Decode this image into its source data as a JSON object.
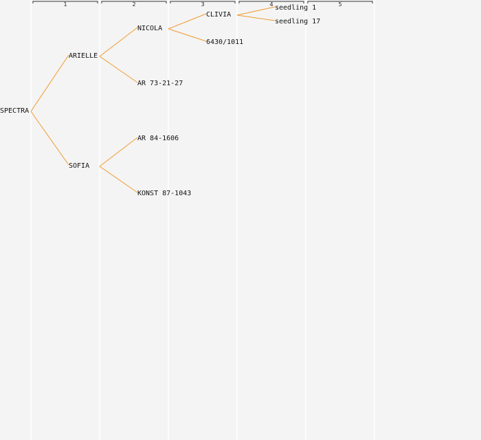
{
  "generations": [
    "1",
    "2",
    "3",
    "4",
    "5"
  ],
  "pedigree": {
    "name": "SPECTRA",
    "children": [
      {
        "name": "ARIELLE",
        "children": [
          {
            "name": "NICOLA",
            "children": [
              {
                "name": "CLIVIA",
                "children": [
                  {
                    "name": "seedling 1"
                  },
                  {
                    "name": "seedling 17"
                  }
                ]
              },
              {
                "name": "6430/1011"
              }
            ]
          },
          {
            "name": "AR 73-21-27"
          }
        ]
      },
      {
        "name": "SOFIA",
        "children": [
          {
            "name": "AR 84-1606"
          },
          {
            "name": "KONST 87-1043"
          }
        ]
      }
    ]
  },
  "colors": {
    "background": "#f4f4f4",
    "connector": "#f09a2c",
    "gridline": "#ffffff",
    "bracket": "#333333"
  }
}
